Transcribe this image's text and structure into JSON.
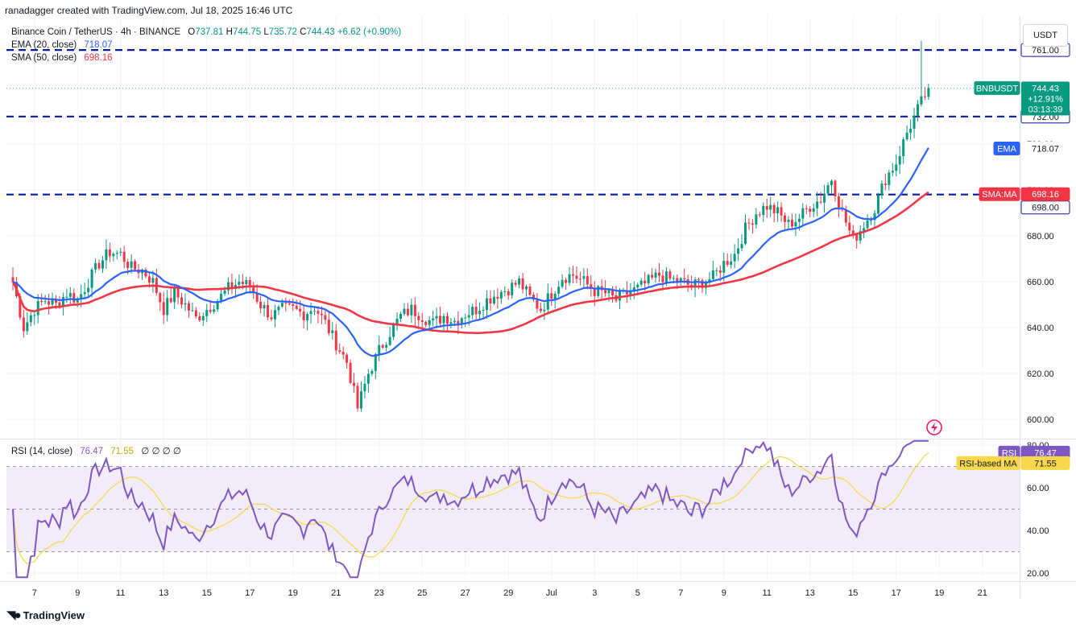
{
  "header": {
    "credit": "ranadagger created with TradingView.com, Jul 18, 2025 16:46 UTC"
  },
  "legend": {
    "symbol_line": "Binance Coin / TetherUS · 4h · BINANCE",
    "ohlc": {
      "o_label": "O",
      "o": "737.81",
      "h_label": "H",
      "h": "744.75",
      "l_label": "L",
      "l": "735.72",
      "c_label": "C",
      "c": "744.43",
      "change": "+6.62 (+0.90%)"
    },
    "ema": {
      "label": "EMA (20, close)",
      "value": "718.07"
    },
    "sma": {
      "label": "SMA (50, close)",
      "value": "698.16"
    },
    "rsi": {
      "label": "RSI (14, close)",
      "value1": "76.47",
      "value2": "71.55",
      "nulls": "∅ ∅ ∅ ∅"
    }
  },
  "currency_button": "USDT",
  "price_axis": {
    "ticks": [
      "600.00",
      "620.00",
      "640.00",
      "660.00",
      "680.00",
      "700.00",
      "720.00"
    ]
  },
  "rsi_axis": {
    "ticks": [
      "20.00",
      "40.00",
      "60.00",
      "80.00"
    ]
  },
  "time_axis": {
    "labels": [
      "7",
      "9",
      "11",
      "13",
      "15",
      "17",
      "19",
      "21",
      "23",
      "25",
      "27",
      "29",
      "Jul",
      "3",
      "5",
      "7",
      "9",
      "11",
      "13",
      "15",
      "17",
      "19",
      "21"
    ]
  },
  "tags": {
    "level_761": "761.00",
    "level_732": "732.00",
    "level_698": "698.00",
    "ticker": {
      "symbol": "BNBUSDT",
      "price": "744.43",
      "pct": "+12.91%",
      "countdown": "03:13:39"
    },
    "ema": {
      "name": "EMA",
      "value": "718.07"
    },
    "sma": {
      "name": "SMA:MA",
      "value": "698.16"
    },
    "rsi": {
      "name": "RSI",
      "value": "76.47"
    },
    "rsi_ma": {
      "name": "RSI-based MA",
      "value": "71.55"
    }
  },
  "footer": {
    "brand": "TradingView"
  },
  "colors": {
    "up": "#089981",
    "down": "#f23645",
    "ema": "#2962ff",
    "sma": "#f23645",
    "level_line": "#0a1a9c",
    "rsi_line": "#7e57c2",
    "rsi_ma": "#f7d74b",
    "rsi_band": "#ede7f6"
  },
  "chart_data": [
    {
      "type": "candlestick",
      "title": "Binance Coin / TetherUS · 4h · BINANCE",
      "x_range": [
        "Jun 6, 2025",
        "Jul 22, 2025"
      ],
      "ylim": [
        595,
        770
      ],
      "horizontal_levels": [
        761,
        732,
        698
      ],
      "current_price": 744.43,
      "series": [
        {
          "name": "BNBUSDT close (approx.)",
          "x": [
            "Jun 6",
            "Jun 6.5",
            "Jun 7",
            "Jun 7.5",
            "Jun 8",
            "Jun 8.5",
            "Jun 9",
            "Jun 9.5",
            "Jun 10",
            "Jun 10.5",
            "Jun 11",
            "Jun 11.5",
            "Jun 12",
            "Jun 12.5",
            "Jun 13",
            "Jun 13.5",
            "Jun 14",
            "Jun 14.5",
            "Jun 15",
            "Jun 15.5",
            "Jun 16",
            "Jun 16.5",
            "Jun 17",
            "Jun 17.5",
            "Jun 18",
            "Jun 18.5",
            "Jun 19",
            "Jun 19.5",
            "Jun 20",
            "Jun 20.5",
            "Jun 21",
            "Jun 21.5",
            "Jun 22",
            "Jun 22.5",
            "Jun 23",
            "Jun 23.5",
            "Jun 24",
            "Jun 24.5",
            "Jun 25",
            "Jun 25.5",
            "Jun 26",
            "Jun 26.5",
            "Jun 27",
            "Jun 27.5",
            "Jun 28",
            "Jun 28.5",
            "Jun 29",
            "Jun 29.5",
            "Jun 30",
            "Jun 30.5",
            "Jul 1",
            "Jul 1.5",
            "Jul 2",
            "Jul 2.5",
            "Jul 3",
            "Jul 3.5",
            "Jul 4",
            "Jul 4.5",
            "Jul 5",
            "Jul 5.5",
            "Jul 6",
            "Jul 6.5",
            "Jul 7",
            "Jul 7.5",
            "Jul 8",
            "Jul 8.5",
            "Jul 9",
            "Jul 9.5",
            "Jul 10",
            "Jul 10.5",
            "Jul 11",
            "Jul 11.5",
            "Jul 12",
            "Jul 12.5",
            "Jul 13",
            "Jul 13.5",
            "Jul 14",
            "Jul 14.5",
            "Jul 15",
            "Jul 15.5",
            "Jul 16",
            "Jul 16.5",
            "Jul 17",
            "Jul 17.5",
            "Jul 18",
            "Jul 18.5"
          ],
          "values": [
            660,
            640,
            648,
            652,
            650,
            655,
            652,
            660,
            668,
            673,
            672,
            666,
            665,
            660,
            648,
            655,
            650,
            644,
            648,
            652,
            657,
            660,
            658,
            650,
            645,
            648,
            648,
            646,
            649,
            642,
            633,
            625,
            605,
            620,
            630,
            638,
            645,
            648,
            645,
            642,
            645,
            643,
            646,
            648,
            652,
            655,
            657,
            660,
            653,
            648,
            655,
            662,
            663,
            660,
            656,
            655,
            652,
            655,
            657,
            660,
            663,
            661,
            660,
            658,
            660,
            662,
            668,
            672,
            683,
            690,
            693,
            690,
            685,
            688,
            693,
            696,
            705,
            690,
            678,
            685,
            692,
            705,
            712,
            725,
            735,
            744.43
          ]
        },
        {
          "name": "EMA (20, close)",
          "values": []
        },
        {
          "name": "SMA (50, close)",
          "values": []
        }
      ]
    },
    {
      "type": "line",
      "title": "RSI (14, close)",
      "ylim": [
        15,
        85
      ],
      "bands": [
        30,
        70
      ],
      "series": [
        {
          "name": "RSI",
          "values": []
        },
        {
          "name": "RSI-based MA",
          "values": []
        }
      ]
    }
  ]
}
